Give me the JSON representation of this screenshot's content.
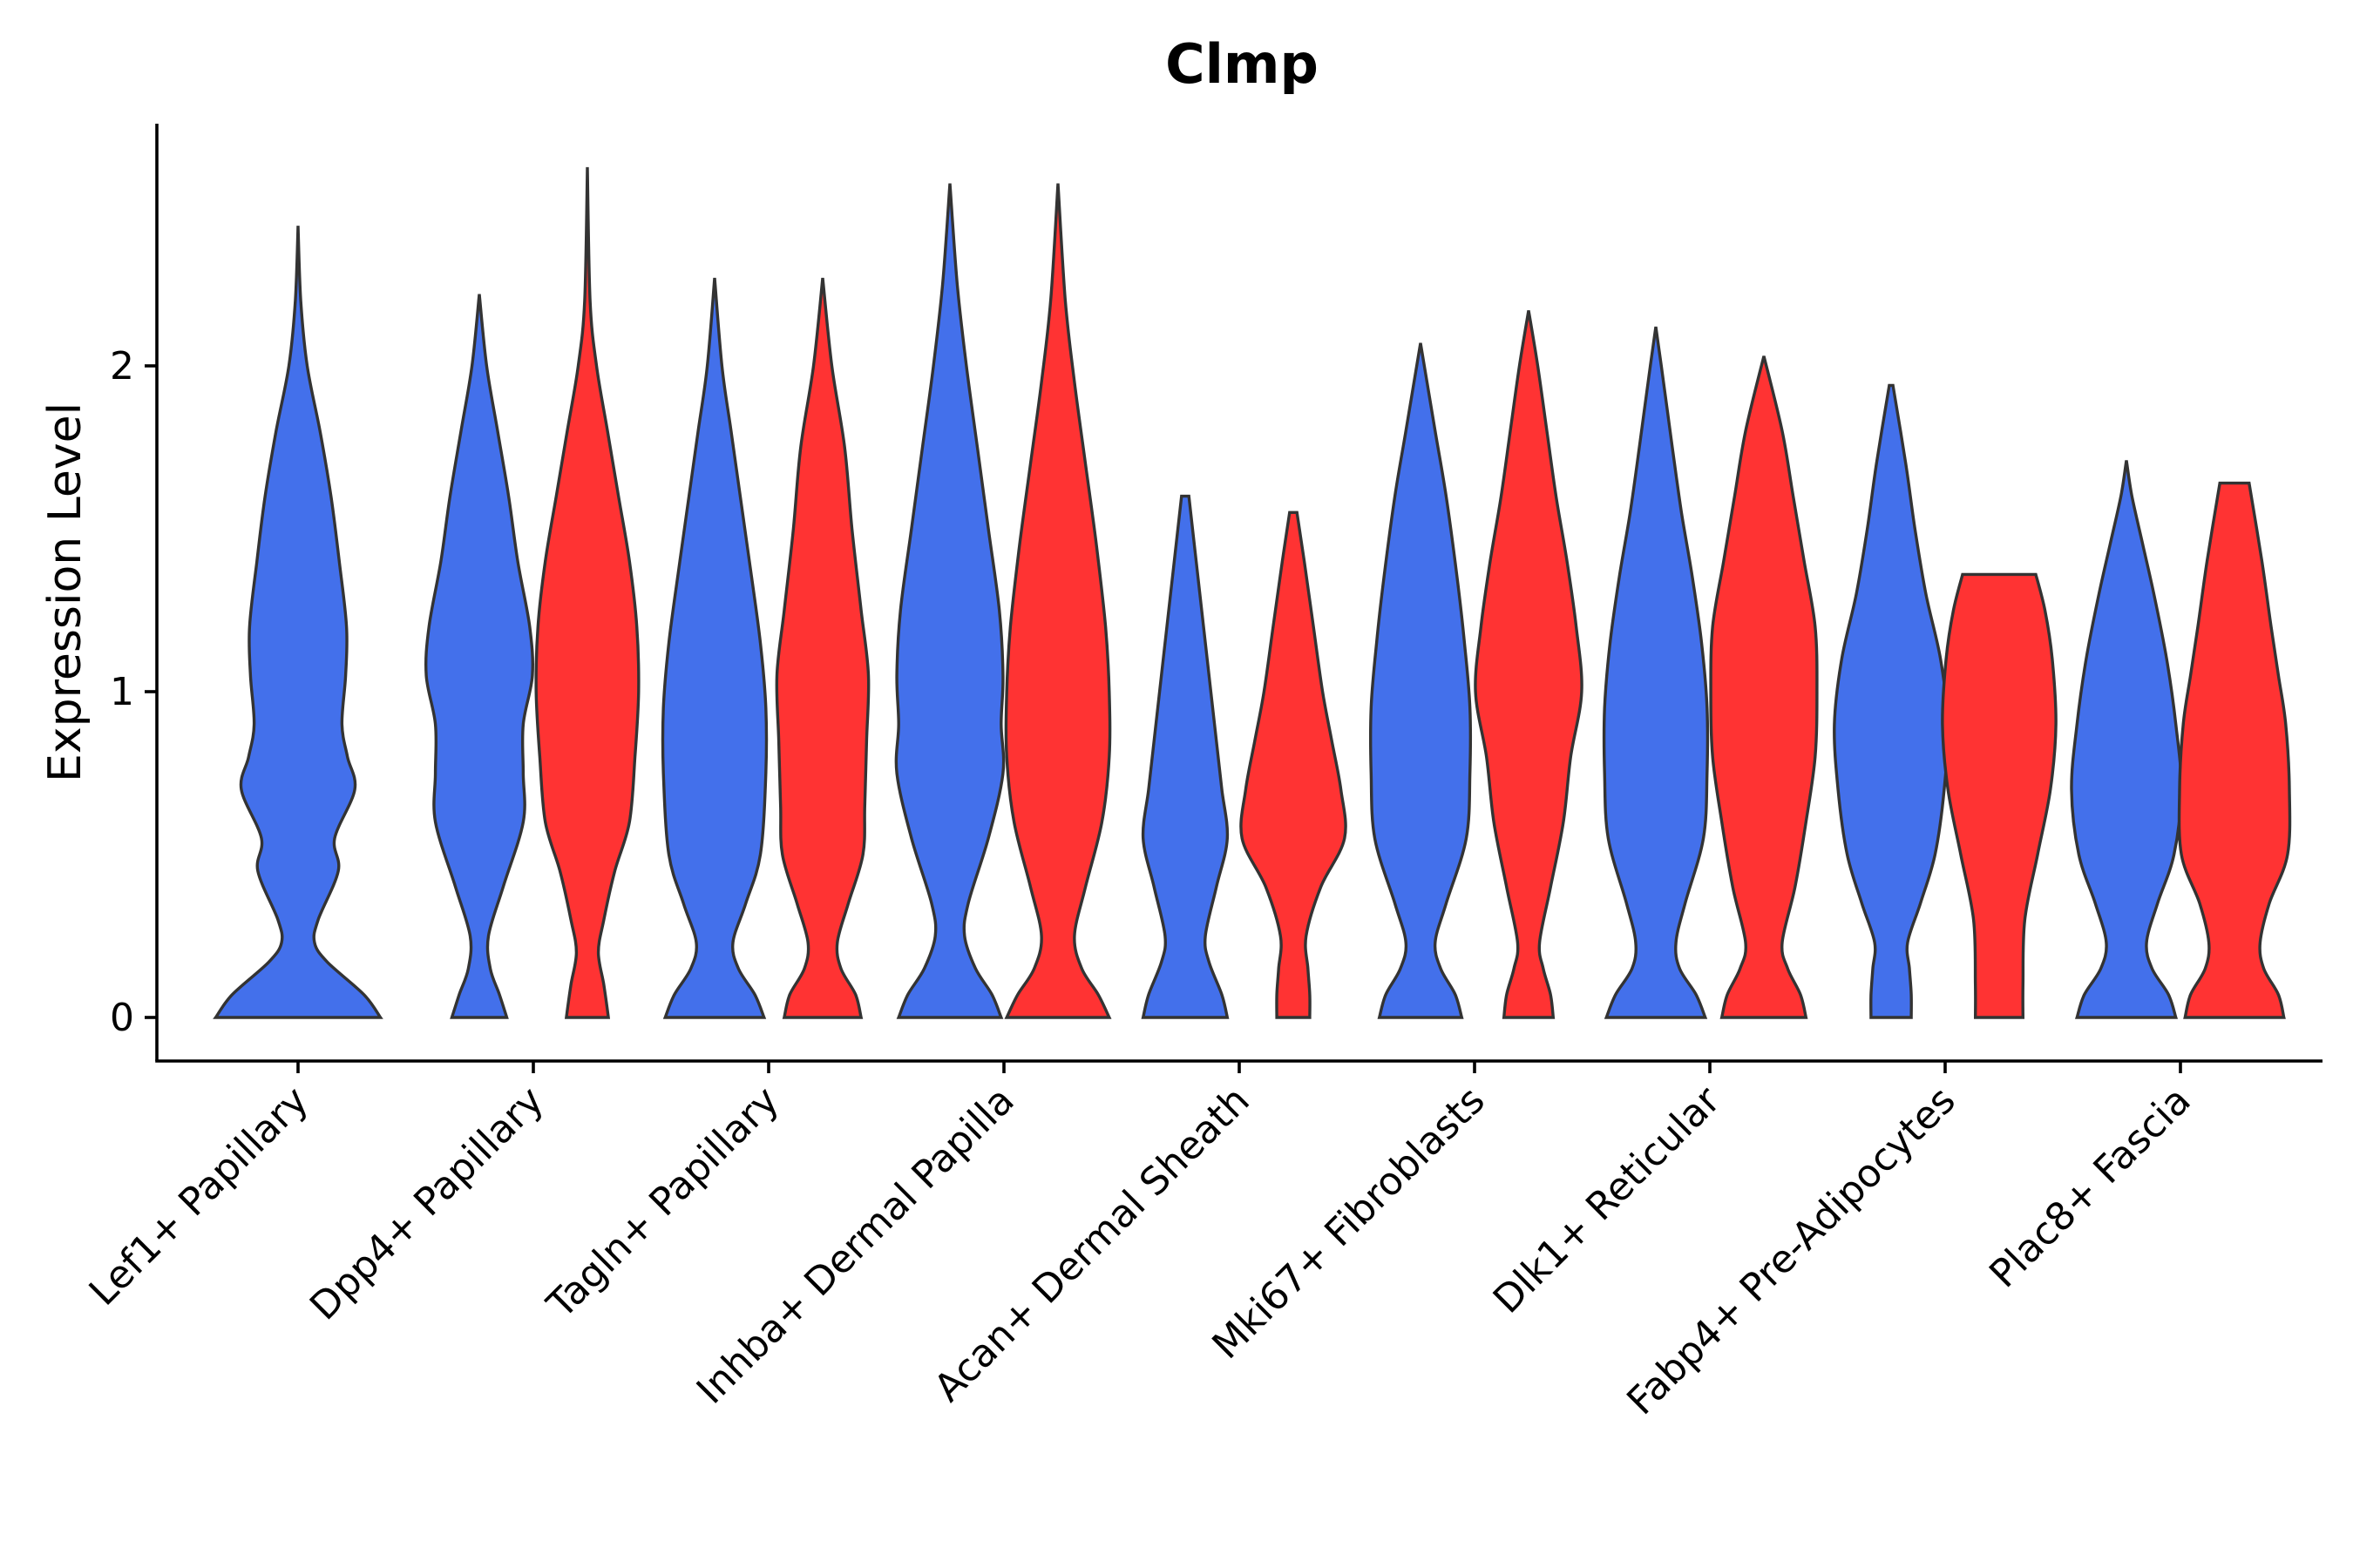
{
  "chart_data": {
    "type": "violin",
    "title": "Clmp",
    "xlabel": "",
    "ylabel": "Expression Level",
    "ylim": [
      -0.13,
      2.75
    ],
    "yticks": [
      0,
      1,
      2
    ],
    "grid": false,
    "legend": "none",
    "categories": [
      "Lef1+ Papillary",
      "Dpp4+ Papillary",
      "Tagln+ Papillary",
      "Inhba+ Dermal Papilla",
      "Acan+ Dermal Sheath",
      "Mki67+ Fibroblasts",
      "Dlk1+ Reticular",
      "Fabp4+ Pre-Adipocytes",
      "Plac8+ Fascia"
    ],
    "colors": {
      "blue": "#4370EB",
      "red": "#FF3333"
    },
    "violins": [
      {
        "category": "Lef1+ Papillary",
        "group": "blue",
        "max": 2.43,
        "profile": [
          [
            0,
            0.9
          ],
          [
            0.07,
            0.72
          ],
          [
            0.17,
            0.32
          ],
          [
            0.23,
            0.18
          ],
          [
            0.3,
            0.22
          ],
          [
            0.45,
            0.44
          ],
          [
            0.55,
            0.4
          ],
          [
            0.7,
            0.62
          ],
          [
            0.8,
            0.54
          ],
          [
            0.9,
            0.48
          ],
          [
            1.05,
            0.52
          ],
          [
            1.2,
            0.53
          ],
          [
            1.4,
            0.45
          ],
          [
            1.6,
            0.36
          ],
          [
            1.8,
            0.24
          ],
          [
            2.0,
            0.1
          ],
          [
            2.2,
            0.03
          ],
          [
            2.43,
            0
          ]
        ]
      },
      {
        "category": "Dpp4+ Papillary",
        "group": "blue",
        "max": 2.22,
        "profile": [
          [
            0,
            0.3
          ],
          [
            0.07,
            0.22
          ],
          [
            0.15,
            0.12
          ],
          [
            0.25,
            0.1
          ],
          [
            0.4,
            0.26
          ],
          [
            0.6,
            0.48
          ],
          [
            0.75,
            0.48
          ],
          [
            0.9,
            0.48
          ],
          [
            1.05,
            0.58
          ],
          [
            1.2,
            0.55
          ],
          [
            1.4,
            0.42
          ],
          [
            1.6,
            0.32
          ],
          [
            1.8,
            0.2
          ],
          [
            2.0,
            0.08
          ],
          [
            2.22,
            0
          ]
        ]
      },
      {
        "category": "Dpp4+ Papillary",
        "group": "red",
        "max": 2.61,
        "profile": [
          [
            0,
            0.23
          ],
          [
            0.1,
            0.18
          ],
          [
            0.2,
            0.12
          ],
          [
            0.3,
            0.18
          ],
          [
            0.45,
            0.3
          ],
          [
            0.6,
            0.46
          ],
          [
            0.8,
            0.52
          ],
          [
            1.0,
            0.56
          ],
          [
            1.2,
            0.54
          ],
          [
            1.4,
            0.46
          ],
          [
            1.6,
            0.34
          ],
          [
            1.8,
            0.22
          ],
          [
            2.0,
            0.1
          ],
          [
            2.2,
            0.03
          ],
          [
            2.61,
            0
          ]
        ]
      },
      {
        "category": "Tagln+ Papillary",
        "group": "blue",
        "max": 2.27,
        "profile": [
          [
            0,
            0.54
          ],
          [
            0.07,
            0.44
          ],
          [
            0.15,
            0.26
          ],
          [
            0.23,
            0.2
          ],
          [
            0.35,
            0.34
          ],
          [
            0.5,
            0.5
          ],
          [
            0.75,
            0.56
          ],
          [
            0.95,
            0.56
          ],
          [
            1.15,
            0.5
          ],
          [
            1.4,
            0.38
          ],
          [
            1.6,
            0.28
          ],
          [
            1.8,
            0.18
          ],
          [
            2.0,
            0.08
          ],
          [
            2.27,
            0
          ]
        ]
      },
      {
        "category": "Tagln+ Papillary",
        "group": "red",
        "max": 2.27,
        "profile": [
          [
            0,
            0.42
          ],
          [
            0.07,
            0.36
          ],
          [
            0.15,
            0.2
          ],
          [
            0.23,
            0.16
          ],
          [
            0.35,
            0.28
          ],
          [
            0.5,
            0.44
          ],
          [
            0.65,
            0.46
          ],
          [
            0.85,
            0.48
          ],
          [
            1.05,
            0.5
          ],
          [
            1.25,
            0.42
          ],
          [
            1.5,
            0.32
          ],
          [
            1.75,
            0.24
          ],
          [
            2.0,
            0.1
          ],
          [
            2.27,
            0
          ]
        ]
      },
      {
        "category": "Inhba+ Dermal Papilla",
        "group": "blue",
        "max": 2.56,
        "profile": [
          [
            0,
            0.56
          ],
          [
            0.07,
            0.46
          ],
          [
            0.15,
            0.28
          ],
          [
            0.25,
            0.16
          ],
          [
            0.35,
            0.2
          ],
          [
            0.55,
            0.42
          ],
          [
            0.75,
            0.58
          ],
          [
            0.9,
            0.56
          ],
          [
            1.05,
            0.58
          ],
          [
            1.25,
            0.54
          ],
          [
            1.5,
            0.42
          ],
          [
            1.75,
            0.3
          ],
          [
            2.0,
            0.18
          ],
          [
            2.25,
            0.08
          ],
          [
            2.56,
            0
          ]
        ]
      },
      {
        "category": "Inhba+ Dermal Papilla",
        "group": "red",
        "max": 2.56,
        "profile": [
          [
            0,
            0.56
          ],
          [
            0.07,
            0.44
          ],
          [
            0.15,
            0.26
          ],
          [
            0.25,
            0.18
          ],
          [
            0.4,
            0.3
          ],
          [
            0.6,
            0.48
          ],
          [
            0.8,
            0.56
          ],
          [
            1.0,
            0.56
          ],
          [
            1.2,
            0.52
          ],
          [
            1.45,
            0.42
          ],
          [
            1.7,
            0.3
          ],
          [
            1.95,
            0.18
          ],
          [
            2.2,
            0.08
          ],
          [
            2.56,
            0
          ]
        ]
      },
      {
        "category": "Acan+ Dermal Sheath",
        "group": "blue",
        "max": 1.6,
        "profile": [
          [
            0,
            0.46
          ],
          [
            0.07,
            0.4
          ],
          [
            0.17,
            0.26
          ],
          [
            0.25,
            0.22
          ],
          [
            0.4,
            0.34
          ],
          [
            0.55,
            0.46
          ],
          [
            0.7,
            0.4
          ],
          [
            0.85,
            0.34
          ],
          [
            1.0,
            0.28
          ],
          [
            1.2,
            0.2
          ],
          [
            1.4,
            0.12
          ],
          [
            1.6,
            0.04
          ]
        ]
      },
      {
        "category": "Acan+ Dermal Sheath",
        "group": "red",
        "max": 1.55,
        "profile": [
          [
            0,
            0.18
          ],
          [
            0.07,
            0.18
          ],
          [
            0.15,
            0.16
          ],
          [
            0.25,
            0.14
          ],
          [
            0.4,
            0.3
          ],
          [
            0.55,
            0.56
          ],
          [
            0.7,
            0.52
          ],
          [
            0.85,
            0.42
          ],
          [
            1.0,
            0.32
          ],
          [
            1.2,
            0.22
          ],
          [
            1.4,
            0.12
          ],
          [
            1.55,
            0.04
          ]
        ]
      },
      {
        "category": "Mki67+ Fibroblasts",
        "group": "blue",
        "max": 2.07,
        "profile": [
          [
            0,
            0.45
          ],
          [
            0.07,
            0.38
          ],
          [
            0.15,
            0.22
          ],
          [
            0.23,
            0.16
          ],
          [
            0.35,
            0.28
          ],
          [
            0.55,
            0.5
          ],
          [
            0.75,
            0.54
          ],
          [
            0.95,
            0.54
          ],
          [
            1.15,
            0.48
          ],
          [
            1.35,
            0.4
          ],
          [
            1.6,
            0.28
          ],
          [
            1.8,
            0.16
          ],
          [
            2.07,
            0
          ]
        ]
      },
      {
        "category": "Mki67+ Fibroblasts",
        "group": "red",
        "max": 2.17,
        "profile": [
          [
            0,
            0.27
          ],
          [
            0.07,
            0.24
          ],
          [
            0.15,
            0.16
          ],
          [
            0.23,
            0.12
          ],
          [
            0.4,
            0.24
          ],
          [
            0.6,
            0.38
          ],
          [
            0.8,
            0.46
          ],
          [
            1.0,
            0.58
          ],
          [
            1.2,
            0.52
          ],
          [
            1.4,
            0.42
          ],
          [
            1.6,
            0.3
          ],
          [
            1.8,
            0.2
          ],
          [
            2.0,
            0.1
          ],
          [
            2.17,
            0
          ]
        ]
      },
      {
        "category": "Dlk1+ Reticular",
        "group": "blue",
        "max": 2.12,
        "profile": [
          [
            0,
            0.54
          ],
          [
            0.07,
            0.44
          ],
          [
            0.15,
            0.26
          ],
          [
            0.23,
            0.22
          ],
          [
            0.35,
            0.32
          ],
          [
            0.55,
            0.52
          ],
          [
            0.75,
            0.56
          ],
          [
            0.95,
            0.56
          ],
          [
            1.15,
            0.5
          ],
          [
            1.35,
            0.4
          ],
          [
            1.55,
            0.28
          ],
          [
            1.75,
            0.18
          ],
          [
            2.0,
            0.06
          ],
          [
            2.12,
            0
          ]
        ]
      },
      {
        "category": "Dlk1+ Reticular",
        "group": "red",
        "max": 2.03,
        "profile": [
          [
            0,
            0.46
          ],
          [
            0.07,
            0.4
          ],
          [
            0.15,
            0.26
          ],
          [
            0.23,
            0.2
          ],
          [
            0.4,
            0.34
          ],
          [
            0.6,
            0.46
          ],
          [
            0.8,
            0.56
          ],
          [
            1.0,
            0.58
          ],
          [
            1.2,
            0.56
          ],
          [
            1.4,
            0.44
          ],
          [
            1.6,
            0.32
          ],
          [
            1.8,
            0.2
          ],
          [
            2.03,
            0
          ]
        ]
      },
      {
        "category": "Fabp4+ Pre-Adipocytes",
        "group": "blue",
        "max": 1.94,
        "profile": [
          [
            0,
            0.22
          ],
          [
            0.07,
            0.22
          ],
          [
            0.15,
            0.2
          ],
          [
            0.23,
            0.18
          ],
          [
            0.35,
            0.32
          ],
          [
            0.5,
            0.48
          ],
          [
            0.7,
            0.58
          ],
          [
            0.9,
            0.62
          ],
          [
            1.1,
            0.54
          ],
          [
            1.3,
            0.38
          ],
          [
            1.5,
            0.26
          ],
          [
            1.7,
            0.16
          ],
          [
            1.94,
            0.02
          ]
        ]
      },
      {
        "category": "Fabp4+ Pre-Adipocytes",
        "group": "red",
        "max": 1.36,
        "profile": [
          [
            0,
            0.26
          ],
          [
            0.1,
            0.26
          ],
          [
            0.3,
            0.28
          ],
          [
            0.5,
            0.42
          ],
          [
            0.7,
            0.56
          ],
          [
            0.9,
            0.62
          ],
          [
            1.1,
            0.58
          ],
          [
            1.25,
            0.5
          ],
          [
            1.36,
            0.4
          ]
        ]
      },
      {
        "category": "Plac8+ Fascia",
        "group": "blue",
        "max": 1.71,
        "profile": [
          [
            0,
            0.54
          ],
          [
            0.07,
            0.46
          ],
          [
            0.15,
            0.28
          ],
          [
            0.23,
            0.22
          ],
          [
            0.35,
            0.34
          ],
          [
            0.5,
            0.52
          ],
          [
            0.7,
            0.6
          ],
          [
            0.9,
            0.54
          ],
          [
            1.1,
            0.44
          ],
          [
            1.3,
            0.3
          ],
          [
            1.45,
            0.18
          ],
          [
            1.6,
            0.06
          ],
          [
            1.71,
            0
          ]
        ]
      },
      {
        "category": "Plac8+ Fascia",
        "group": "red",
        "max": 1.64,
        "profile": [
          [
            0,
            0.54
          ],
          [
            0.07,
            0.48
          ],
          [
            0.15,
            0.32
          ],
          [
            0.23,
            0.28
          ],
          [
            0.35,
            0.38
          ],
          [
            0.5,
            0.58
          ],
          [
            0.7,
            0.6
          ],
          [
            0.9,
            0.56
          ],
          [
            1.05,
            0.48
          ],
          [
            1.2,
            0.4
          ],
          [
            1.4,
            0.3
          ],
          [
            1.64,
            0.16
          ]
        ]
      }
    ]
  }
}
